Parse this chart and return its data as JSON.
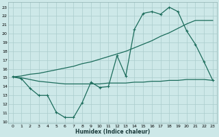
{
  "xlabel": "Humidex (Indice chaleur)",
  "xlim": [
    -0.5,
    23.5
  ],
  "ylim": [
    9.8,
    23.6
  ],
  "yticks": [
    10,
    11,
    12,
    13,
    14,
    15,
    16,
    17,
    18,
    19,
    20,
    21,
    22,
    23
  ],
  "xticks": [
    0,
    1,
    2,
    3,
    4,
    5,
    6,
    7,
    8,
    9,
    10,
    11,
    12,
    13,
    14,
    15,
    16,
    17,
    18,
    19,
    20,
    21,
    22,
    23
  ],
  "background_color": "#cde8e8",
  "grid_color": "#aacccc",
  "line_color": "#1a6b5a",
  "line1_x": [
    0,
    1,
    2,
    3,
    4,
    5,
    6,
    7,
    8,
    9,
    10,
    11,
    12,
    13,
    14,
    15,
    16,
    17,
    18,
    19,
    20,
    21,
    22,
    23
  ],
  "line1_y": [
    15.1,
    14.9,
    13.8,
    13.0,
    13.0,
    11.1,
    10.5,
    10.5,
    12.2,
    14.5,
    13.9,
    14.0,
    17.5,
    15.2,
    20.5,
    22.3,
    22.5,
    22.2,
    23.0,
    22.5,
    20.3,
    18.8,
    16.8,
    14.7
  ],
  "line2_x": [
    0,
    1,
    2,
    3,
    4,
    5,
    6,
    7,
    8,
    9,
    10,
    11,
    12,
    13,
    14,
    15,
    16,
    17,
    18,
    19,
    20,
    21,
    22,
    23
  ],
  "line2_y": [
    15.1,
    15.0,
    14.8,
    14.6,
    14.5,
    14.4,
    14.3,
    14.3,
    14.3,
    14.3,
    14.3,
    14.4,
    14.4,
    14.4,
    14.5,
    14.5,
    14.6,
    14.6,
    14.7,
    14.7,
    14.8,
    14.8,
    14.8,
    14.7
  ],
  "line3_x": [
    0,
    1,
    2,
    3,
    4,
    5,
    6,
    7,
    8,
    9,
    10,
    11,
    12,
    13,
    14,
    15,
    16,
    17,
    18,
    19,
    20,
    21,
    22,
    23
  ],
  "line3_y": [
    15.1,
    15.2,
    15.4,
    15.5,
    15.7,
    15.9,
    16.1,
    16.3,
    16.6,
    16.8,
    17.1,
    17.4,
    17.7,
    18.0,
    18.4,
    18.8,
    19.2,
    19.7,
    20.1,
    20.6,
    21.1,
    21.5,
    21.5,
    21.5
  ],
  "line_width": 0.9,
  "marker_size": 2.5
}
